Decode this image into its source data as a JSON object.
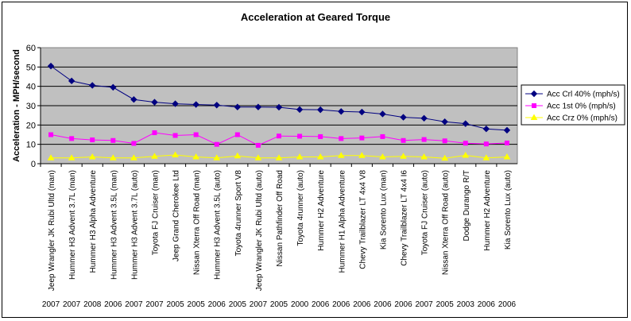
{
  "chart_data": {
    "type": "line",
    "title": "Acceleration at Geared Torque",
    "ylabel": "Acceleration - MPH/second",
    "xlabel": "",
    "ylim": [
      0,
      60
    ],
    "yticks": [
      0,
      10,
      20,
      30,
      40,
      50,
      60
    ],
    "grid": true,
    "plot_background": "#c0c0c0",
    "legend_position": "right",
    "categories": [
      "Jeep Wrangler JK Rubi Ultd (man)",
      "Hummer H3 Advent 3.7L (man)",
      "Hummer H3 Alpha Adventure",
      "Hummer H3 Advent 3.5L (man)",
      "Hummer H3 Advent 3.7L (auto)",
      "Toyota FJ Cruiser (man)",
      "Jeep Grand Cherokee Ltd",
      "Nissan Xterra Off Road (man)",
      "Hummer H3 Advent 3.5L (auto)",
      "Toyota 4runner Sport V8",
      "Jeep Wrangler JK Rubi Ultd (auto)",
      "Nissan Pathfinder Off Road",
      "Toyota 4runner (auto)",
      "Hummer H2 Adventure",
      "Hummer H1 Alpha Adventure",
      "Chevy Trailblazer LT 4x4 V8",
      "Kia Sorento Lux (man)",
      "Chevy Trailblazer LT 4x4 I6",
      "Toyota FJ Cruiser (auto)",
      "Nissan Xterra Off Road (auto)",
      "Dodge Durango R/T",
      "Hummer H2 Adventure",
      "Kia Sorento Lux (auto)"
    ],
    "years": [
      "2007",
      "2007",
      "2008",
      "2006",
      "2007",
      "2007",
      "2005",
      "2005",
      "2006",
      "2005",
      "2007",
      "2005",
      "2000",
      "2006",
      "2006",
      "2006",
      "2006",
      "2006",
      "2007",
      "2005",
      "2003",
      "2006",
      "2006"
    ],
    "series": [
      {
        "name": "Acc Crl 40% (mph/s)",
        "color": "#000080",
        "marker": "diamond",
        "values": [
          50.5,
          42.8,
          40.5,
          39.5,
          33.2,
          31.8,
          31.0,
          30.6,
          30.3,
          29.3,
          29.3,
          29.2,
          28.0,
          27.9,
          27.0,
          26.7,
          25.7,
          24.0,
          23.5,
          21.7,
          20.7,
          18.0,
          17.3
        ]
      },
      {
        "name": "Acc 1st 0% (mph/s)",
        "color": "#ff00ff",
        "marker": "square",
        "values": [
          15.0,
          13.0,
          12.3,
          12.0,
          10.5,
          16.0,
          14.6,
          15.0,
          10.0,
          15.0,
          9.5,
          14.3,
          14.2,
          14.0,
          13.0,
          13.3,
          14.0,
          12.0,
          12.5,
          11.8,
          10.6,
          10.2,
          10.7
        ]
      },
      {
        "name": "Acc Crz 0% (mph/s)",
        "color": "#ffff00",
        "marker": "triangle",
        "values": [
          3.0,
          3.0,
          3.5,
          3.0,
          3.0,
          3.8,
          4.5,
          3.5,
          3.0,
          4.0,
          3.0,
          3.0,
          3.5,
          3.5,
          4.2,
          4.2,
          3.5,
          3.8,
          3.5,
          2.8,
          4.3,
          3.0,
          3.5
        ]
      }
    ]
  }
}
